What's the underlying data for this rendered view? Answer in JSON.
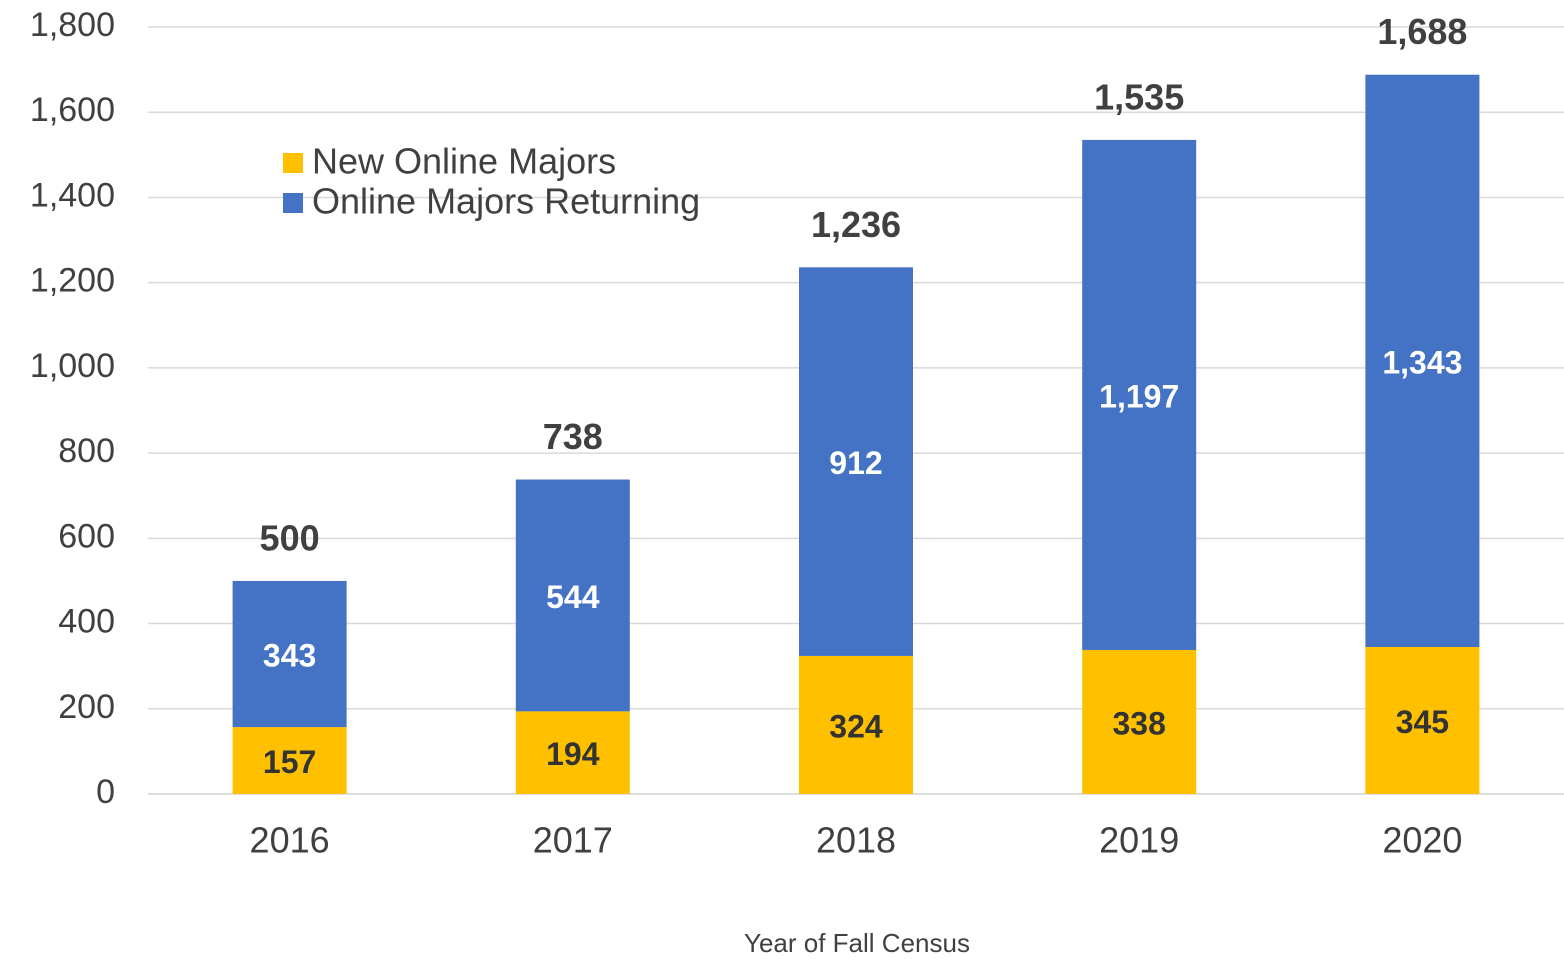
{
  "chart_data": {
    "type": "stacked_bar",
    "categories": [
      "2016",
      "2017",
      "2018",
      "2019",
      "2020"
    ],
    "series": [
      {
        "name": "New Online Majors",
        "color": "#FFC000",
        "values": [
          157,
          194,
          324,
          338,
          345
        ]
      },
      {
        "name": "Online Majors Returning",
        "color": "#4472C4",
        "values": [
          343,
          544,
          912,
          1197,
          1343
        ],
        "value_labels": [
          "343",
          "544",
          "912",
          "1,197",
          "1,343"
        ]
      }
    ],
    "totals": [
      500,
      738,
      1236,
      1535,
      1688
    ],
    "total_labels": [
      "500",
      "738",
      "1,236",
      "1,535",
      "1,688"
    ],
    "xlabel": "Year of Fall Census",
    "ylim": [
      0,
      1800
    ],
    "yticks": [
      0,
      200,
      400,
      600,
      800,
      {
        "value": 1000,
        "label": "1,000"
      },
      {
        "value": 1200,
        "label": "1,200"
      },
      {
        "value": 1400,
        "label": "1,400"
      },
      {
        "value": 1600,
        "label": "1,600"
      },
      {
        "value": 1800,
        "label": "1,800"
      }
    ],
    "grid": true,
    "legend": "upper left"
  }
}
